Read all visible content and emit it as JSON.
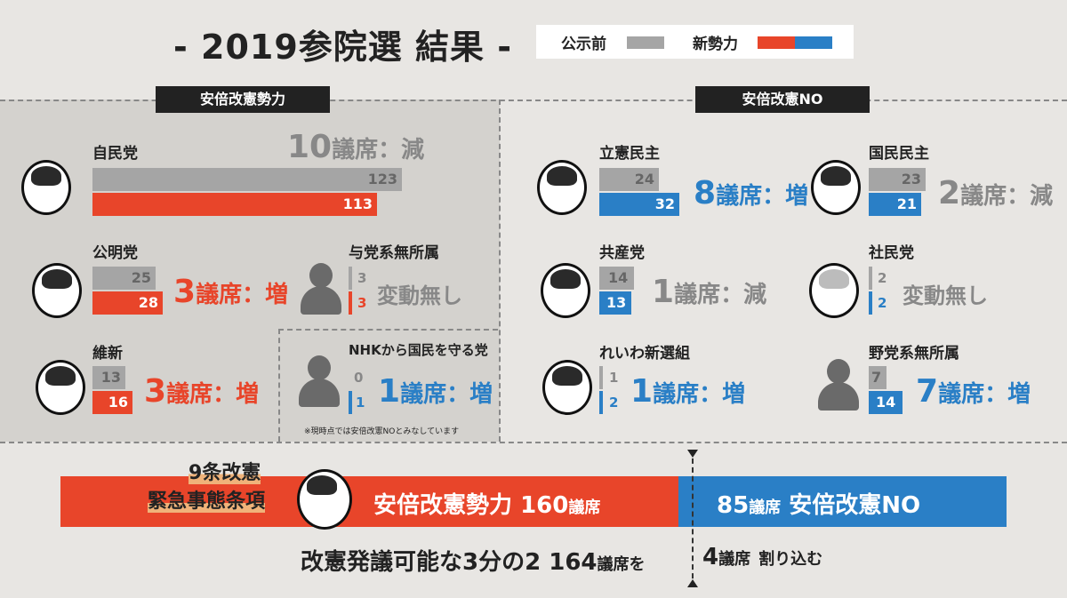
{
  "title": "- 2019参院選 結果 -",
  "legend": {
    "before_label": "公示前",
    "after_label": "新勢力",
    "colors": {
      "before": "#a5a5a5",
      "pro": "#e8452a",
      "anti": "#2a7fc6"
    }
  },
  "sections": {
    "pro_label": "安倍改憲勢力",
    "anti_label": "安倍改憲NO"
  },
  "parties": {
    "ldp": {
      "name": "自民党",
      "before": "123",
      "after": "113",
      "change_num": "10",
      "change_text": "議席：減"
    },
    "komeito": {
      "name": "公明党",
      "before": "25",
      "after": "28",
      "change_num": "3",
      "change_text": "議席：増"
    },
    "ishin": {
      "name": "維新",
      "before": "13",
      "after": "16",
      "change_num": "3",
      "change_text": "議席：増"
    },
    "ruling_ind": {
      "name": "与党系無所属",
      "before": "3",
      "after": "3",
      "change_text": "変動無し"
    },
    "nhk": {
      "name": "NHKから国民を守る党",
      "before": "0",
      "after": "1",
      "change_num": "1",
      "change_text": "議席：増",
      "note": "※現時点では安倍改憲NOとみなしています"
    },
    "cdp": {
      "name": "立憲民主",
      "before": "24",
      "after": "32",
      "change_num": "8",
      "change_text": "議席：増"
    },
    "dpfp": {
      "name": "国民民主",
      "before": "23",
      "after": "21",
      "change_num": "2",
      "change_text": "議席：減"
    },
    "jcp": {
      "name": "共産党",
      "before": "14",
      "after": "13",
      "change_num": "1",
      "change_text": "議席：減"
    },
    "sdp": {
      "name": "社民党",
      "before": "2",
      "after": "2",
      "change_text": "変動無し"
    },
    "reiwa": {
      "name": "れいわ新選組",
      "before": "1",
      "after": "2",
      "change_num": "1",
      "change_text": "議席：増"
    },
    "opp_ind": {
      "name": "野党系無所属",
      "before": "7",
      "after": "14",
      "change_num": "7",
      "change_text": "議席：増"
    }
  },
  "summary": {
    "callout_1": "9条改憲",
    "callout_2": "緊急事態条項",
    "pro_label": "安倍改憲勢力",
    "pro_seats": "160",
    "anti_seats": "85",
    "seat_unit": "議席",
    "anti_label": "安倍改憲NO",
    "threshold_text": "改憲発議可能な3分の2",
    "threshold_seats": "164",
    "threshold_suffix": "議席を",
    "shortfall_seats": "4",
    "shortfall_suffix": "割り込む"
  }
}
